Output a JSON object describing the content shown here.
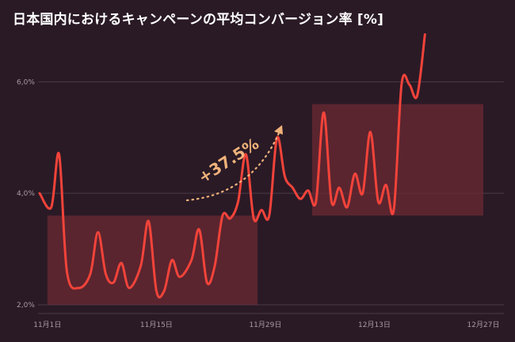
{
  "title": "日本国内におけるキャンペーンの平均コンバージョン率 [%]",
  "colors": {
    "background": "#2a1a26",
    "line": "#f2433a",
    "highlight_fill": "#6b2a33",
    "annotation": "#f0b27a",
    "grid": "#4a3a46",
    "tick_text": "#a89aa4"
  },
  "chart_data": {
    "type": "line",
    "title": "日本国内におけるキャンペーンの平均コンバージョン率 [%]",
    "xlabel": "",
    "ylabel": "",
    "x_start": "11月1日",
    "x_end": "12月31日",
    "ylim": [
      1.9,
      6.9
    ],
    "grid": true,
    "yticks": [
      {
        "value": 2.0,
        "label": "2,0%"
      },
      {
        "value": 4.0,
        "label": "4,0%"
      },
      {
        "value": 6.0,
        "label": "6,0%"
      }
    ],
    "xticks": [
      {
        "day": 1,
        "label": "11月1日"
      },
      {
        "day": 15,
        "label": "11月15日"
      },
      {
        "day": 29,
        "label": "11月29日"
      },
      {
        "day": 43,
        "label": "12月13日"
      },
      {
        "day": 57,
        "label": "12月27日"
      }
    ],
    "series": [
      {
        "values": [
          [
            0,
            4.0
          ],
          [
            1.5,
            3.75
          ],
          [
            2.5,
            4.7
          ],
          [
            3.5,
            2.6
          ],
          [
            5,
            2.3
          ],
          [
            6.5,
            2.55
          ],
          [
            7.5,
            3.3
          ],
          [
            8.5,
            2.55
          ],
          [
            9.5,
            2.4
          ],
          [
            10.5,
            2.75
          ],
          [
            11.5,
            2.3
          ],
          [
            13,
            2.7
          ],
          [
            14,
            3.5
          ],
          [
            15,
            2.25
          ],
          [
            16,
            2.25
          ],
          [
            17,
            2.8
          ],
          [
            18,
            2.5
          ],
          [
            19.5,
            2.8
          ],
          [
            20.5,
            3.35
          ],
          [
            21.5,
            2.4
          ],
          [
            22.5,
            2.7
          ],
          [
            23.5,
            3.6
          ],
          [
            24.5,
            3.55
          ],
          [
            25.5,
            3.85
          ],
          [
            26.5,
            4.7
          ],
          [
            27.5,
            3.55
          ],
          [
            28.5,
            3.7
          ],
          [
            29.5,
            3.6
          ],
          [
            30.5,
            5.0
          ],
          [
            31.5,
            4.3
          ],
          [
            32.5,
            4.1
          ],
          [
            33.5,
            3.9
          ],
          [
            34.5,
            4.05
          ],
          [
            35.5,
            3.85
          ],
          [
            36.5,
            5.45
          ],
          [
            37.5,
            3.85
          ],
          [
            38.5,
            4.1
          ],
          [
            39.5,
            3.75
          ],
          [
            40.5,
            4.35
          ],
          [
            41.5,
            4.0
          ],
          [
            42.5,
            5.1
          ],
          [
            43.5,
            3.85
          ],
          [
            44.5,
            4.15
          ],
          [
            45.5,
            3.7
          ],
          [
            46.5,
            5.95
          ],
          [
            47.5,
            5.95
          ],
          [
            48.5,
            5.75
          ],
          [
            49.5,
            6.85
          ]
        ]
      }
    ],
    "highlights": [
      {
        "x_from": 1,
        "x_to": 28,
        "y_from": 2.0,
        "y_to": 3.6
      },
      {
        "x_from": 35,
        "x_to": 57,
        "y_from": 3.6,
        "y_to": 5.6
      }
    ],
    "annotations": [
      {
        "text": "+37.5%"
      }
    ]
  }
}
